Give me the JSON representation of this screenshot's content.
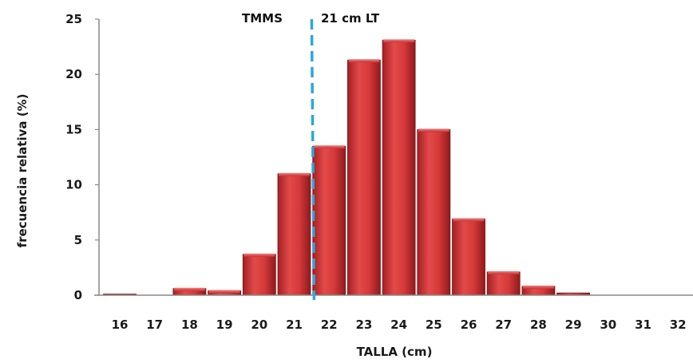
{
  "chart_data": {
    "type": "bar",
    "title": "",
    "xlabel": "TALLA (cm)",
    "ylabel": "frecuencia relativa (%)",
    "ylim": [
      0,
      25
    ],
    "yticks": [
      "0",
      "5",
      "10",
      "15",
      "20",
      "25"
    ],
    "grid": false,
    "legend": "none",
    "categories": [
      "16",
      "17",
      "18",
      "19",
      "20",
      "21",
      "22",
      "23",
      "24",
      "25",
      "26",
      "27",
      "28",
      "29",
      "30",
      "31",
      "32"
    ],
    "series": [
      {
        "values": [
          0.1,
          0.0,
          0.6,
          0.4,
          3.7,
          11.0,
          13.5,
          21.3,
          23.1,
          15.0,
          6.9,
          2.1,
          0.8,
          0.2,
          0.0,
          0.0,
          0.0
        ]
      }
    ],
    "bar_color": "#c83232",
    "reference_line": {
      "x": 21.5,
      "color": "#29a8e0",
      "style": "dashed"
    },
    "annotations": {
      "left": "TMMS",
      "right": "21 cm LT"
    }
  }
}
